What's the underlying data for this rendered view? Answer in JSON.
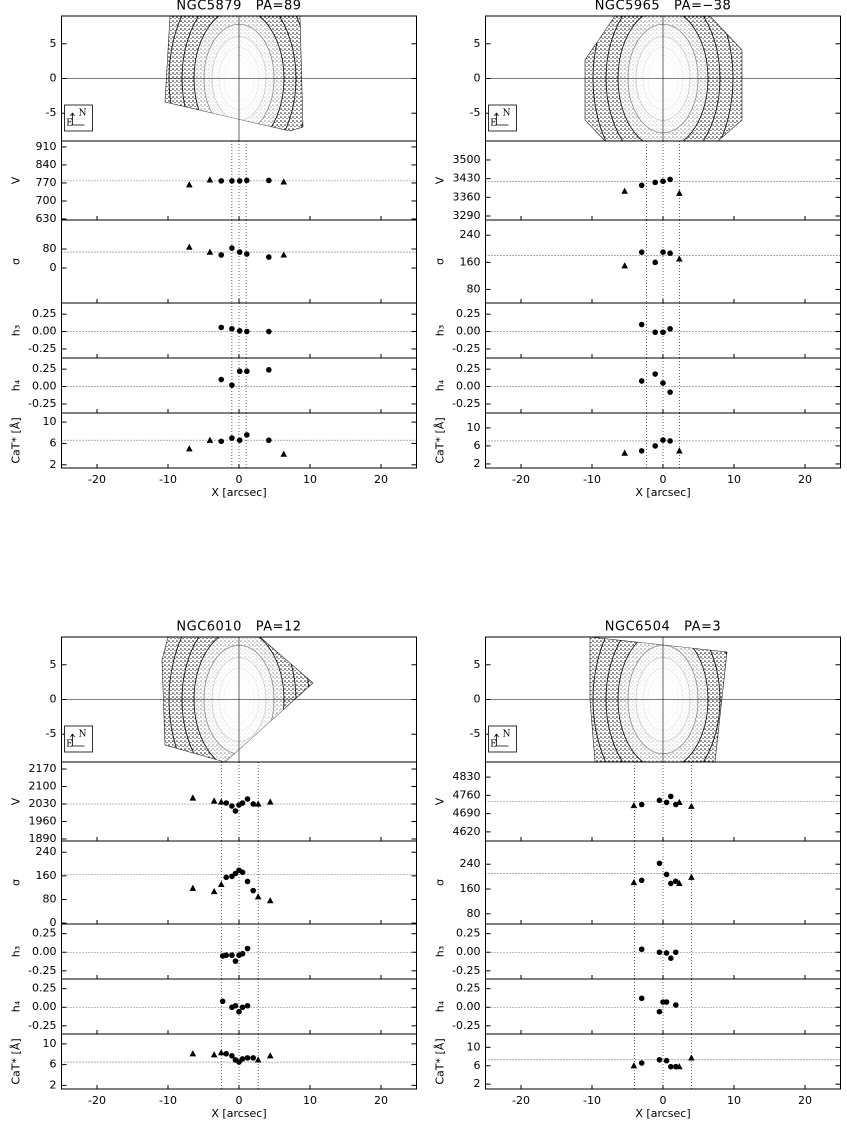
{
  "chart_data": [
    {
      "type": "scatter",
      "title": "NGC5879   PA=89",
      "compass": [
        "N",
        "E"
      ],
      "xlabel": "X [arcsec]",
      "xlim": [
        -25,
        25
      ],
      "xticks": [
        -20,
        -10,
        0,
        10,
        20
      ],
      "vlines": [
        -1,
        0,
        1
      ],
      "image": {
        "ylim": [
          -9,
          9
        ],
        "yticks": [
          -5,
          0,
          5
        ]
      },
      "panels": [
        {
          "ylabel": "V",
          "ylim": [
            626,
            933
          ],
          "yticks": [
            910,
            840,
            770,
            700,
            630
          ],
          "hline": 778,
          "series": [
            {
              "marker": "triangle",
              "x": [
                -7,
                -4.1,
                6.3
              ],
              "values": [
                763,
                782,
                774
              ]
            },
            {
              "marker": "circle",
              "x": [
                -2.5,
                -1,
                0.1,
                1.1,
                4.2
              ],
              "values": [
                778,
                778,
                778,
                780,
                780
              ]
            }
          ]
        },
        {
          "ylabel": "σ",
          "ylim": [
            -147,
            202
          ],
          "yticks": [
            80,
            0
          ],
          "hline": 67,
          "series": [
            {
              "marker": "triangle",
              "x": [
                -7,
                -4.1,
                6.3
              ],
              "values": [
                88,
                67,
                55
              ]
            },
            {
              "marker": "circle",
              "x": [
                -2.5,
                -1,
                0.1,
                1.1,
                4.2
              ],
              "values": [
                55,
                84,
                67,
                59,
                46
              ]
            }
          ]
        },
        {
          "ylabel": "h₃",
          "ylim": [
            -0.38,
            0.41
          ],
          "yticks": [
            0.25,
            {
              "value": 0,
              "label": "0.00"
            },
            -0.25
          ],
          "hline": 0,
          "series": [
            {
              "marker": "circle",
              "x": [
                -2.5,
                -1,
                0.1,
                1.1,
                4.2
              ],
              "values": [
                0.06,
                0.04,
                0.01,
                0,
                0
              ]
            }
          ]
        },
        {
          "ylabel": "h₄",
          "ylim": [
            -0.38,
            0.41
          ],
          "yticks": [
            0.25,
            {
              "value": 0,
              "label": "0.00"
            },
            -0.25
          ],
          "hline": 0,
          "series": [
            {
              "marker": "circle",
              "x": [
                -2.5,
                -1,
                0.1,
                1.1,
                4.2
              ],
              "values": [
                0.1,
                0.02,
                0.22,
                0.22,
                0.24
              ]
            }
          ]
        },
        {
          "ylabel": "CaT* [Å]",
          "ylim": [
            1.4,
            11.7
          ],
          "yticks": [
            10,
            6,
            2
          ],
          "hline": 6.6,
          "series": [
            {
              "marker": "triangle",
              "x": [
                -7,
                -4.1,
                6.3
              ],
              "values": [
                5.0,
                6.6,
                4.0
              ]
            },
            {
              "marker": "circle",
              "x": [
                -2.5,
                -1,
                0.1,
                1.1,
                4.2
              ],
              "values": [
                6.4,
                7.0,
                6.6,
                7.6,
                6.6
              ]
            }
          ]
        }
      ]
    },
    {
      "type": "scatter",
      "title": "NGC5965   PA=−38",
      "compass": [
        "N",
        "E"
      ],
      "xlabel": "X [arcsec]",
      "xlim": [
        -25,
        25
      ],
      "xticks": [
        -20,
        -10,
        0,
        10,
        20
      ],
      "vlines": [
        -2.3,
        0,
        2.3
      ],
      "image": {
        "ylim": [
          -9,
          9
        ],
        "yticks": [
          -5,
          0,
          5
        ]
      },
      "panels": [
        {
          "ylabel": "V",
          "ylim": [
            3275,
            3571
          ],
          "yticks": [
            3500,
            3430,
            3360,
            3290
          ],
          "hline": 3420,
          "series": [
            {
              "marker": "triangle",
              "x": [
                -5.4,
                2.3
              ],
              "values": [
                3383,
                3375
              ]
            },
            {
              "marker": "circle",
              "x": [
                -3,
                -1.1,
                0,
                1
              ],
              "values": [
                3405,
                3416,
                3420,
                3427
              ]
            }
          ]
        },
        {
          "ylabel": "σ",
          "ylim": [
            40,
            285
          ],
          "yticks": [
            240,
            160,
            80
          ],
          "hline": 180,
          "series": [
            {
              "marker": "triangle",
              "x": [
                -5.4,
                2.3
              ],
              "values": [
                150,
                170
              ]
            },
            {
              "marker": "circle",
              "x": [
                -3,
                -1.1,
                0,
                1
              ],
              "values": [
                190,
                160,
                190,
                187
              ]
            }
          ]
        },
        {
          "ylabel": "h₃",
          "ylim": [
            -0.38,
            0.41
          ],
          "yticks": [
            0.25,
            {
              "value": 0,
              "label": "0.00"
            },
            -0.25
          ],
          "hline": 0,
          "series": [
            {
              "marker": "circle",
              "x": [
                -3,
                -1.1,
                0,
                1
              ],
              "values": [
                0.1,
                -0.01,
                -0.01,
                0.04
              ]
            }
          ]
        },
        {
          "ylabel": "h₄",
          "ylim": [
            -0.38,
            0.41
          ],
          "yticks": [
            0.25,
            {
              "value": 0,
              "label": "0.00"
            },
            -0.25
          ],
          "hline": 0,
          "series": [
            {
              "marker": "circle",
              "x": [
                -3,
                -1.1,
                0,
                1
              ],
              "values": [
                0.08,
                0.18,
                0.05,
                -0.08
              ]
            }
          ]
        },
        {
          "ylabel": "CaT* [Å]",
          "ylim": [
            1.1,
            13.3
          ],
          "yticks": [
            10,
            6,
            2
          ],
          "hline": 7.1,
          "series": [
            {
              "marker": "triangle",
              "x": [
                -5.4,
                2.3
              ],
              "values": [
                4.4,
                4.9
              ]
            },
            {
              "marker": "circle",
              "x": [
                -3,
                -1.1,
                0,
                1
              ],
              "values": [
                4.9,
                6.0,
                7.3,
                7.1
              ]
            }
          ]
        }
      ]
    },
    {
      "type": "scatter",
      "title": "NGC6010   PA=12",
      "compass": [
        "N",
        "E"
      ],
      "xlabel": "X [arcsec]",
      "xlim": [
        -25,
        25
      ],
      "xticks": [
        -20,
        -10,
        0,
        10,
        20
      ],
      "vlines": [
        -2.5,
        0,
        2.7
      ],
      "image": {
        "ylim": [
          -9,
          9
        ],
        "yticks": [
          -5,
          0,
          5
        ]
      },
      "panels": [
        {
          "ylabel": "V",
          "ylim": [
            1882,
            2198
          ],
          "yticks": [
            2170,
            2100,
            2030,
            1960,
            1890
          ],
          "hline": 2030,
          "series": [
            {
              "marker": "triangle",
              "x": [
                -6.5,
                -3.5,
                -2.5,
                2.7,
                4.4
              ],
              "values": [
                2054,
                2042,
                2038,
                2030,
                2038
              ]
            },
            {
              "marker": "circle",
              "x": [
                -1.8,
                -1,
                -0.5,
                0,
                0.5,
                1.2,
                2
              ],
              "values": [
                2034,
                2022,
                2002,
                2026,
                2034,
                2050,
                2030
              ]
            }
          ]
        },
        {
          "ylabel": "σ",
          "ylim": [
            -3,
            278
          ],
          "yticks": [
            240,
            160,
            80,
            0
          ],
          "hline": 165,
          "series": [
            {
              "marker": "triangle",
              "x": [
                -6.5,
                -3.5,
                -2.5,
                2.7,
                4.4
              ],
              "values": [
                118,
                107,
                131,
                89,
                76
              ]
            },
            {
              "marker": "circle",
              "x": [
                -1.8,
                -1,
                -0.5,
                0,
                0.5,
                1.2,
                2
              ],
              "values": [
                155,
                158,
                168,
                179,
                172,
                141,
                110
              ]
            }
          ]
        },
        {
          "ylabel": "h₃",
          "ylim": [
            -0.36,
            0.38
          ],
          "yticks": [
            0.25,
            {
              "value": 0,
              "label": "0.00"
            },
            -0.25
          ],
          "hline": 0,
          "series": [
            {
              "marker": "circle",
              "x": [
                -2.3,
                -1.8,
                -1,
                -0.5,
                0,
                0.5,
                1.2
              ],
              "values": [
                -0.05,
                -0.04,
                -0.04,
                -0.12,
                -0.04,
                -0.02,
                0.05
              ]
            }
          ]
        },
        {
          "ylabel": "h₄",
          "ylim": [
            -0.36,
            0.38
          ],
          "yticks": [
            0.25,
            {
              "value": 0,
              "label": "0.00"
            },
            -0.25
          ],
          "hline": 0,
          "series": [
            {
              "marker": "circle",
              "x": [
                -2.3,
                -1,
                -0.5,
                0,
                0.5,
                1.2
              ],
              "values": [
                0.08,
                0.0,
                0.02,
                -0.06,
                0.0,
                0.02
              ]
            }
          ]
        },
        {
          "ylabel": "CaT* [Å]",
          "ylim": [
            1.3,
            11.9
          ],
          "yticks": [
            10,
            6,
            2
          ],
          "hline": 6.5,
          "series": [
            {
              "marker": "triangle",
              "x": [
                -6.5,
                -3.5,
                -2.5,
                2.7,
                4.4
              ],
              "values": [
                8.1,
                7.9,
                8.3,
                6.9,
                7.7
              ]
            },
            {
              "marker": "circle",
              "x": [
                -1.8,
                -1,
                -0.5,
                0,
                0.5,
                1.2,
                2
              ],
              "values": [
                8.1,
                7.7,
                6.9,
                6.5,
                7.1,
                7.3,
                7.3
              ]
            }
          ]
        }
      ]
    },
    {
      "type": "scatter",
      "title": "NGC6504   PA=3",
      "compass": [
        "N",
        "E"
      ],
      "xlabel": "X [arcsec]",
      "xlim": [
        -25,
        25
      ],
      "xticks": [
        -20,
        -10,
        0,
        10,
        20
      ],
      "vlines": [
        -4,
        0,
        4
      ],
      "image": {
        "ylim": [
          -9,
          9
        ],
        "yticks": [
          -5,
          0,
          5
        ]
      },
      "panels": [
        {
          "ylabel": "V",
          "ylim": [
            4585,
            4888
          ],
          "yticks": [
            4830,
            4760,
            4690,
            4620
          ],
          "hline": 4736,
          "series": [
            {
              "marker": "triangle",
              "x": [
                -4.1,
                2.3,
                4.0
              ],
              "values": [
                4721,
                4733,
                4718
              ]
            },
            {
              "marker": "circle",
              "x": [
                -3,
                -0.5,
                0.5,
                1.1,
                1.8
              ],
              "values": [
                4725,
                4741,
                4733,
                4756,
                4725
              ]
            }
          ]
        },
        {
          "ylabel": "σ",
          "ylim": [
            47,
            315
          ],
          "yticks": [
            240,
            160,
            80
          ],
          "hline": 210,
          "series": [
            {
              "marker": "triangle",
              "x": [
                -4.1,
                2.3,
                4.0
              ],
              "values": [
                181,
                178,
                198
              ]
            },
            {
              "marker": "circle",
              "x": [
                -3,
                -0.5,
                0.5,
                1.1,
                1.8
              ],
              "values": [
                188,
                243,
                207,
                178,
                185
              ]
            }
          ]
        },
        {
          "ylabel": "h₃",
          "ylim": [
            -0.36,
            0.38
          ],
          "yticks": [
            0.25,
            {
              "value": 0,
              "label": "0.00"
            },
            -0.25
          ],
          "hline": 0,
          "series": [
            {
              "marker": "circle",
              "x": [
                -3,
                -0.5,
                0.5,
                1.1,
                1.8
              ],
              "values": [
                0.04,
                0,
                -0.01,
                -0.08,
                0
              ]
            }
          ]
        },
        {
          "ylabel": "h₄",
          "ylim": [
            -0.36,
            0.38
          ],
          "yticks": [
            0.25,
            {
              "value": 0,
              "label": "0.00"
            },
            -0.25
          ],
          "hline": 0,
          "series": [
            {
              "marker": "circle",
              "x": [
                -3,
                -0.5,
                0,
                0.5,
                1.8
              ],
              "values": [
                0.12,
                -0.06,
                0.07,
                0.07,
                0.03
              ]
            }
          ]
        },
        {
          "ylabel": "CaT* [Å]",
          "ylim": [
            0.95,
            12.9
          ],
          "yticks": [
            10,
            6,
            2
          ],
          "hline": 7.3,
          "series": [
            {
              "marker": "triangle",
              "x": [
                -4.1,
                2.3,
                4.0
              ],
              "values": [
                6.0,
                5.8,
                7.7
              ]
            },
            {
              "marker": "circle",
              "x": [
                -3,
                -0.5,
                0.5,
                1.1,
                1.8
              ],
              "values": [
                6.6,
                7.3,
                7.1,
                5.8,
                5.8
              ]
            }
          ]
        }
      ]
    }
  ]
}
